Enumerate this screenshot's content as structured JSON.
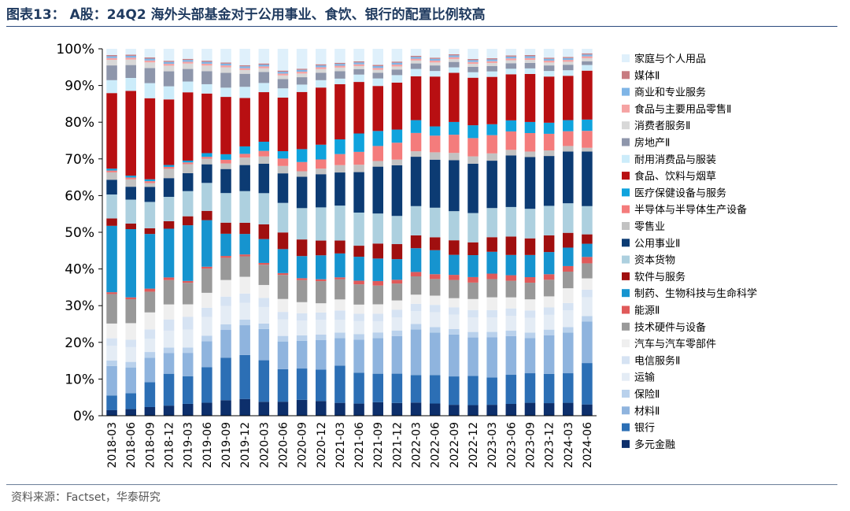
{
  "title": "图表13： A股：24Q2 海外头部基金对于公用事业、食饮、银行的配置比例较高",
  "source": "资料来源：Factset，华泰研究",
  "chart_data": {
    "type": "bar",
    "stacked": true,
    "ylim": [
      0,
      100
    ],
    "yticks": [
      "0%",
      "10%",
      "20%",
      "30%",
      "40%",
      "50%",
      "60%",
      "70%",
      "80%",
      "90%",
      "100%"
    ],
    "grid": false,
    "legend_position": "right",
    "categories": [
      "2018-03",
      "2018-06",
      "2018-09",
      "2018-12",
      "2019-03",
      "2019-06",
      "2019-09",
      "2019-12",
      "2020-03",
      "2020-06",
      "2020-09",
      "2020-12",
      "2021-03",
      "2021-06",
      "2021-09",
      "2021-12",
      "2022-03",
      "2022-06",
      "2022-09",
      "2022-12",
      "2023-03",
      "2023-06",
      "2023-09",
      "2023-12",
      "2024-03",
      "2024-06"
    ],
    "series": [
      {
        "name": "多元金融",
        "color": "#0d2f6b",
        "values": [
          1.5,
          1.8,
          2.3,
          2.7,
          3.3,
          3.5,
          4.2,
          4.5,
          3.8,
          3.8,
          4.3,
          4.0,
          3.5,
          3.3,
          3.6,
          3.4,
          3.6,
          3.3,
          3.0,
          2.9,
          3.0,
          3.2,
          3.5,
          3.4,
          3.5,
          3.0
        ]
      },
      {
        "name": "银行",
        "color": "#2c6fb5",
        "values": [
          4.0,
          4.3,
          6.6,
          8.5,
          7.7,
          9.5,
          11.5,
          11.8,
          11.3,
          8.8,
          8.5,
          8.5,
          10.1,
          8.4,
          7.6,
          7.8,
          7.5,
          7.7,
          7.8,
          8.0,
          7.5,
          7.9,
          8.0,
          7.9,
          8.0,
          11.0
        ]
      },
      {
        "name": "材料Ⅱ",
        "color": "#8fb4de",
        "values": [
          8.0,
          7.0,
          6.5,
          5.5,
          6.5,
          7.0,
          7.5,
          8.0,
          8.5,
          7.5,
          7.5,
          8.0,
          7.5,
          9.0,
          9.5,
          10.0,
          12.5,
          11.5,
          11.5,
          10.5,
          11.0,
          10.5,
          9.5,
          10.5,
          11.0,
          11.0
        ]
      },
      {
        "name": "保险Ⅱ",
        "color": "#b9d1ec",
        "values": [
          1.5,
          1.5,
          1.5,
          1.5,
          1.5,
          1.5,
          1.5,
          1.5,
          1.5,
          1.5,
          1.5,
          1.5,
          1.5,
          1.5,
          1.5,
          1.5,
          1.5,
          1.5,
          1.5,
          1.5,
          1.5,
          1.5,
          1.5,
          1.5,
          1.5,
          1.5
        ]
      },
      {
        "name": "运输",
        "color": "#e4ecf5",
        "values": [
          4.0,
          4.0,
          3.5,
          4.5,
          5.0,
          5.0,
          5.0,
          4.5,
          4.5,
          4.5,
          4.0,
          4.0,
          3.5,
          3.5,
          3.0,
          3.5,
          3.5,
          4.0,
          4.0,
          4.0,
          4.0,
          4.0,
          4.0,
          4.0,
          4.5,
          5.0
        ]
      },
      {
        "name": "电信服务Ⅱ",
        "color": "#d6e3f3",
        "values": [
          2.0,
          2.0,
          2.5,
          3.0,
          3.5,
          2.5,
          2.5,
          2.5,
          2.5,
          2.0,
          2.0,
          2.0,
          2.5,
          2.0,
          2.0,
          2.0,
          2.0,
          2.0,
          2.0,
          2.0,
          2.0,
          2.0,
          2.0,
          2.0,
          2.0,
          2.0
        ]
      },
      {
        "name": "汽车与汽车零部件",
        "color": "#efefef",
        "values": [
          4.0,
          4.5,
          4.5,
          4.0,
          3.5,
          4.0,
          4.5,
          4.5,
          3.5,
          3.5,
          3.0,
          2.5,
          3.0,
          2.5,
          2.5,
          2.5,
          2.5,
          2.5,
          2.5,
          3.0,
          3.5,
          3.0,
          3.0,
          3.0,
          4.0,
          3.0
        ]
      },
      {
        "name": "技术硬件与设备",
        "color": "#999999",
        "values": [
          8.0,
          6.5,
          5.5,
          6.5,
          6.0,
          6.5,
          6.0,
          5.5,
          5.5,
          6.5,
          6.0,
          6.0,
          5.5,
          5.5,
          5.0,
          4.5,
          5.0,
          4.5,
          5.0,
          4.5,
          5.0,
          4.5,
          4.5,
          4.5,
          4.5,
          4.0
        ]
      },
      {
        "name": "能源Ⅱ",
        "color": "#e05a5a",
        "values": [
          0.5,
          0.5,
          0.8,
          0.7,
          0.5,
          0.5,
          0.5,
          0.5,
          0.5,
          0.5,
          0.5,
          0.5,
          0.5,
          1.0,
          1.2,
          1.0,
          1.2,
          1.3,
          1.4,
          1.5,
          1.5,
          1.5,
          1.5,
          1.5,
          1.5,
          1.7
        ]
      },
      {
        "name": "制药、生物科技与生命科学",
        "color": "#1694cf",
        "values": [
          18.0,
          18.5,
          14.5,
          13.0,
          15.5,
          12.5,
          6.0,
          5.5,
          6.5,
          6.5,
          6.0,
          6.5,
          6.5,
          6.5,
          6.0,
          5.5,
          6.5,
          6.5,
          5.5,
          6.0,
          6.0,
          5.5,
          6.0,
          6.0,
          5.0,
          3.5
        ]
      },
      {
        "name": "软件与服务",
        "color": "#a00f0f",
        "values": [
          2.0,
          1.5,
          1.5,
          2.0,
          2.5,
          2.5,
          3.0,
          3.0,
          4.0,
          4.5,
          4.5,
          4.0,
          3.5,
          3.0,
          4.0,
          4.0,
          3.5,
          3.5,
          4.0,
          3.5,
          4.0,
          5.0,
          4.5,
          4.5,
          4.0,
          2.5
        ]
      },
      {
        "name": "资本货物",
        "color": "#add0df",
        "values": [
          6.5,
          6.5,
          7.0,
          6.5,
          7.0,
          7.5,
          8.0,
          8.5,
          8.5,
          8.0,
          8.5,
          9.0,
          9.5,
          9.0,
          8.0,
          7.5,
          8.0,
          8.0,
          8.0,
          8.0,
          8.0,
          8.0,
          8.0,
          8.0,
          8.0,
          7.5
        ]
      },
      {
        "name": "公用事业Ⅱ",
        "color": "#0c3b73",
        "values": [
          4.0,
          3.5,
          4.0,
          5.0,
          5.0,
          5.0,
          6.5,
          7.0,
          8.0,
          8.0,
          8.5,
          9.0,
          9.0,
          11.0,
          12.5,
          13.5,
          13.5,
          13.0,
          14.0,
          13.5,
          13.0,
          14.0,
          14.0,
          13.5,
          14.0,
          14.5
        ]
      },
      {
        "name": "零售业",
        "color": "#c2c2c2",
        "values": [
          2.0,
          2.0,
          1.0,
          2.5,
          2.5,
          1.5,
          1.5,
          2.0,
          2.0,
          2.0,
          1.5,
          1.5,
          2.0,
          2.0,
          1.5,
          1.5,
          1.5,
          2.0,
          2.0,
          2.0,
          2.0,
          1.5,
          1.5,
          1.5,
          1.5,
          1.0
        ]
      },
      {
        "name": "半导体与半导体生产设备",
        "color": "#f47c7c",
        "values": [
          0.5,
          0.5,
          0.5,
          0.5,
          0.5,
          0.5,
          1.0,
          1.0,
          1.5,
          2.0,
          2.5,
          2.5,
          3.0,
          3.5,
          4.0,
          4.5,
          5.0,
          4.5,
          5.0,
          5.0,
          5.0,
          5.0,
          5.0,
          4.5,
          4.0,
          4.5
        ]
      },
      {
        "name": "医疗保健设备与服务",
        "color": "#0fa3dd",
        "values": [
          0.5,
          0.5,
          0.5,
          0.5,
          0.5,
          1.0,
          1.5,
          2.0,
          2.5,
          2.0,
          3.5,
          4.0,
          4.0,
          5.0,
          4.0,
          3.5,
          3.5,
          2.5,
          3.5,
          3.5,
          3.0,
          3.0,
          3.0,
          3.0,
          3.0,
          3.0
        ]
      },
      {
        "name": "食品、饮料与烟草",
        "color": "#b80f12",
        "values": [
          20.5,
          23.0,
          21.5,
          17.5,
          19.0,
          16.0,
          15.5,
          13.0,
          13.5,
          14.5,
          15.5,
          15.5,
          15.0,
          14.0,
          12.0,
          12.5,
          12.0,
          13.5,
          13.5,
          13.0,
          13.0,
          12.5,
          13.0,
          12.5,
          12.0,
          13.0
        ]
      },
      {
        "name": "耐用消费品与服装",
        "color": "#ccecfa",
        "values": [
          3.5,
          3.5,
          4.0,
          3.5,
          3.0,
          2.5,
          2.5,
          3.0,
          2.5,
          2.5,
          2.0,
          2.0,
          1.5,
          2.0,
          2.0,
          2.0,
          2.0,
          1.5,
          1.5,
          1.5,
          1.5,
          1.5,
          1.5,
          1.5,
          1.5,
          1.5
        ]
      },
      {
        "name": "房地产Ⅱ",
        "color": "#8e96ab",
        "values": [
          4.0,
          3.5,
          4.0,
          4.0,
          3.5,
          3.5,
          4.0,
          3.5,
          3.0,
          2.5,
          2.0,
          2.0,
          2.0,
          1.5,
          1.5,
          1.5,
          1.5,
          1.5,
          1.5,
          1.5,
          1.5,
          1.5,
          1.5,
          1.5,
          1.5,
          1.0
        ]
      },
      {
        "name": "消费者服务Ⅱ",
        "color": "#d8d8d8",
        "values": [
          1.5,
          1.5,
          1.5,
          1.5,
          1.5,
          1.5,
          1.5,
          1.0,
          1.0,
          1.0,
          1.0,
          1.0,
          1.0,
          0.8,
          0.8,
          0.8,
          0.8,
          0.8,
          0.8,
          0.8,
          0.8,
          0.8,
          0.8,
          0.8,
          0.8,
          0.8
        ]
      },
      {
        "name": "食品与主要用品零售Ⅱ",
        "color": "#f5a3a3",
        "values": [
          0.5,
          0.5,
          0.5,
          0.5,
          0.5,
          0.5,
          0.5,
          0.5,
          0.5,
          0.5,
          0.5,
          0.5,
          0.5,
          0.5,
          0.5,
          0.5,
          0.5,
          0.5,
          0.5,
          0.5,
          0.5,
          0.5,
          0.5,
          0.5,
          0.5,
          0.5
        ]
      },
      {
        "name": "商业和专业服务",
        "color": "#7fb5e6",
        "values": [
          0.5,
          0.5,
          0.5,
          0.5,
          0.5,
          0.5,
          0.5,
          0.5,
          0.5,
          0.5,
          0.5,
          0.5,
          0.5,
          0.5,
          0.5,
          0.5,
          0.5,
          0.5,
          0.5,
          0.5,
          0.5,
          0.5,
          0.5,
          0.5,
          0.5,
          0.5
        ]
      },
      {
        "name": "媒体Ⅱ",
        "color": "#c77b80",
        "values": [
          0.3,
          0.3,
          0.3,
          0.3,
          0.3,
          0.3,
          0.3,
          0.3,
          0.3,
          0.3,
          0.3,
          0.3,
          0.3,
          0.3,
          0.3,
          0.3,
          0.3,
          0.3,
          0.3,
          0.3,
          0.3,
          0.3,
          0.3,
          0.3,
          0.3,
          0.3
        ]
      },
      {
        "name": "家庭与个人用品",
        "color": "#dff0fb",
        "values": [
          1.7,
          1.6,
          2.3,
          3.2,
          2.8,
          3.2,
          3.7,
          4.4,
          4.0,
          5.9,
          5.4,
          4.2,
          3.8,
          3.4,
          4.3,
          3.4,
          1.9,
          2.4,
          1.5,
          2.8,
          2.6,
          1.8,
          1.7,
          2.4,
          2.2,
          1.2
        ]
      }
    ]
  }
}
